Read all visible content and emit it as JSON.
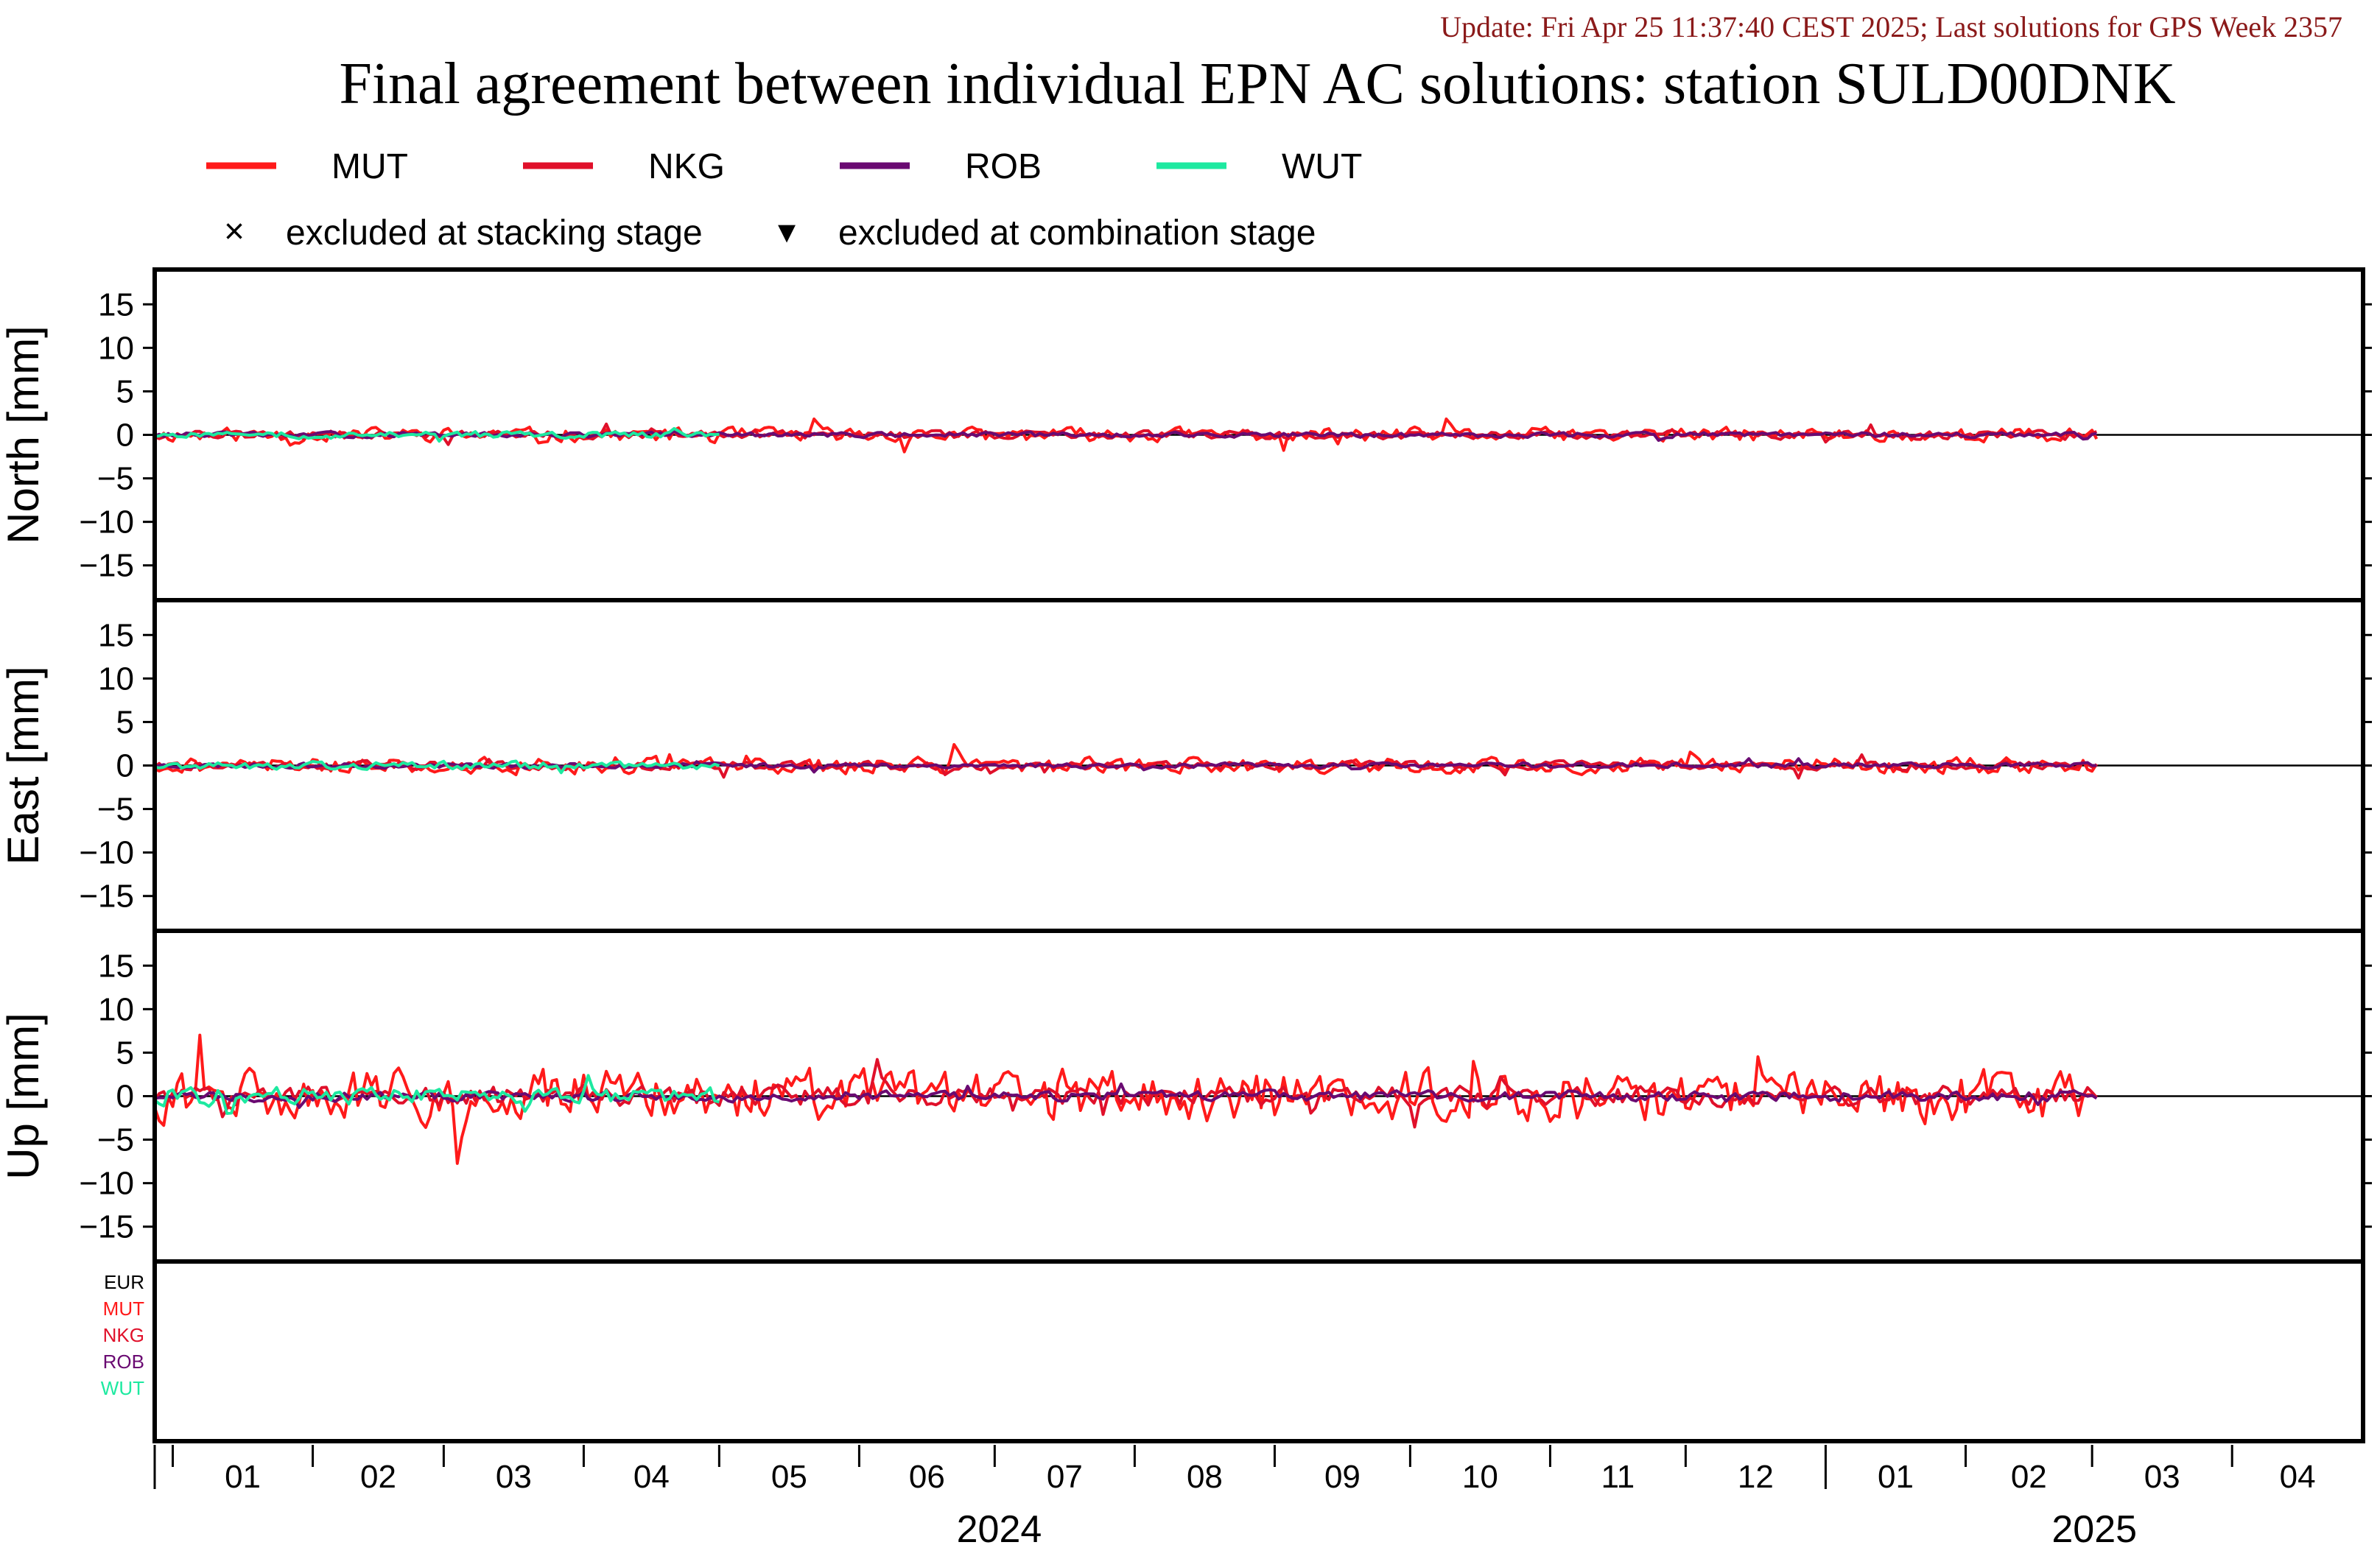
{
  "header": {
    "update": "Update: Fri Apr 25 11:37:40 CEST 2025; Last solutions for GPS Week 2357",
    "title": "Final agreement between individual EPN AC solutions: station SULD00DNK"
  },
  "legend": {
    "series": [
      {
        "name": "MUT",
        "color": "#ff1a1a"
      },
      {
        "name": "NKG",
        "color": "#e0102a"
      },
      {
        "name": "ROB",
        "color": "#6a0a72"
      },
      {
        "name": "WUT",
        "color": "#1de9a0"
      }
    ],
    "markers": [
      {
        "symbol": "×",
        "label": "excluded at stacking stage"
      },
      {
        "symbol": "▾",
        "label": "excluded at combination stage"
      }
    ]
  },
  "ac_list": [
    {
      "name": "EUR",
      "color": "#000000"
    },
    {
      "name": "MUT",
      "color": "#ff1a1a"
    },
    {
      "name": "NKG",
      "color": "#e0102a"
    },
    {
      "name": "ROB",
      "color": "#6a0a72"
    },
    {
      "name": "WUT",
      "color": "#1de9a0"
    }
  ],
  "x_axis": {
    "months": [
      "01",
      "02",
      "03",
      "04",
      "05",
      "06",
      "07",
      "08",
      "09",
      "10",
      "11",
      "12",
      "01",
      "02",
      "03",
      "04"
    ],
    "years": [
      "2024",
      "2025"
    ]
  },
  "chart_data": [
    {
      "type": "line",
      "ylabel": "North [mm]",
      "ylim": [
        -19,
        19
      ],
      "yticks": [
        15,
        10,
        5,
        0,
        -5,
        -10,
        -15
      ],
      "xlim": [
        "2023-12-28",
        "2025-04-30"
      ],
      "series": [
        {
          "name": "MUT",
          "amp": 0.7,
          "start": "2023-12-28",
          "end": "2025-03-02",
          "seed": 11
        },
        {
          "name": "NKG",
          "amp": 0.4,
          "start": "2023-12-28",
          "end": "2025-03-02",
          "seed": 12
        },
        {
          "name": "ROB",
          "amp": 0.25,
          "start": "2023-12-28",
          "end": "2025-03-02",
          "seed": 13
        },
        {
          "name": "WUT",
          "amp": 0.35,
          "start": "2023-12-28",
          "end": "2024-05-01",
          "seed": 14
        }
      ]
    },
    {
      "type": "line",
      "ylabel": "East [mm]",
      "ylim": [
        -19,
        19
      ],
      "yticks": [
        15,
        10,
        5,
        0,
        -5,
        -10,
        -15
      ],
      "xlim": [
        "2023-12-28",
        "2025-04-30"
      ],
      "series": [
        {
          "name": "MUT",
          "amp": 0.8,
          "start": "2023-12-28",
          "end": "2025-03-02",
          "seed": 21
        },
        {
          "name": "NKG",
          "amp": 0.4,
          "start": "2023-12-28",
          "end": "2025-03-02",
          "seed": 22
        },
        {
          "name": "ROB",
          "amp": 0.25,
          "start": "2023-12-28",
          "end": "2025-03-02",
          "seed": 23
        },
        {
          "name": "WUT",
          "amp": 0.4,
          "start": "2023-12-28",
          "end": "2024-05-01",
          "seed": 24
        }
      ]
    },
    {
      "type": "line",
      "ylabel": "Up [mm]",
      "ylim": [
        -19,
        19
      ],
      "yticks": [
        15,
        10,
        5,
        0,
        -5,
        -10,
        -15
      ],
      "xlim": [
        "2023-12-28",
        "2025-04-30"
      ],
      "series": [
        {
          "name": "MUT",
          "amp": 2.6,
          "start": "2023-12-28",
          "end": "2025-03-02",
          "seed": 31
        },
        {
          "name": "NKG",
          "amp": 1.0,
          "start": "2023-12-28",
          "end": "2025-03-02",
          "seed": 32
        },
        {
          "name": "ROB",
          "amp": 0.5,
          "start": "2023-12-28",
          "end": "2025-03-02",
          "seed": 33
        },
        {
          "name": "WUT",
          "amp": 0.9,
          "start": "2023-12-28",
          "end": "2024-05-01",
          "seed": 34
        }
      ]
    }
  ]
}
